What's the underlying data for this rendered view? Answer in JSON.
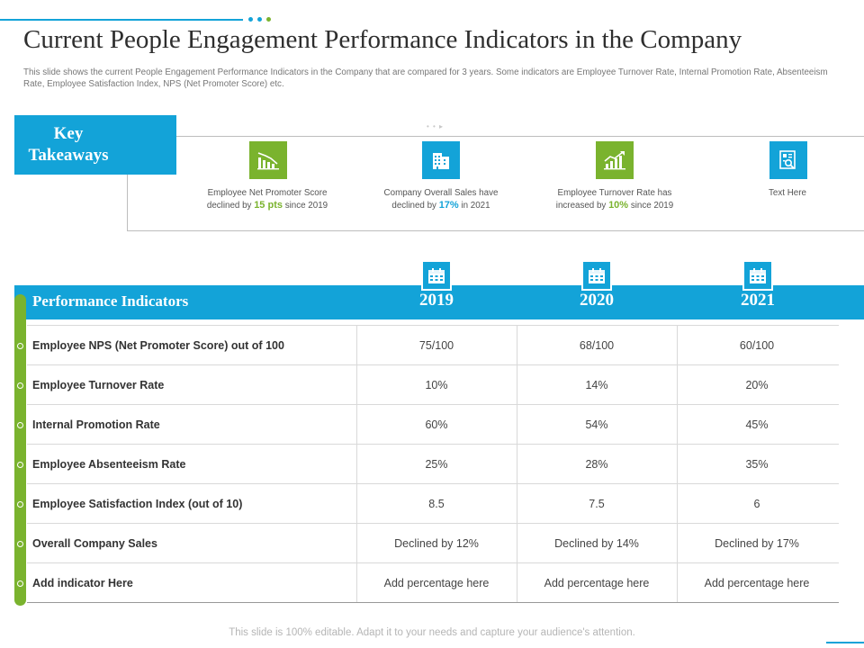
{
  "colors": {
    "accent_blue": "#13a3d8",
    "accent_green": "#7ab32e"
  },
  "title": "Current People Engagement Performance Indicators in the Company",
  "subtitle": "This slide shows the current People Engagement Performance Indicators in the Company that are compared for 3 years. Some indicators are Employee Turnover Rate, Internal Promotion Rate, Absenteeism Rate, Employee Satisfaction Index, NPS (Net Promoter Score) etc.",
  "key_takeaways": {
    "label_line1": "Key",
    "label_line2": "Takeaways",
    "pager": "• • ▸",
    "items": [
      {
        "icon": "declining-bar-chart-icon",
        "pre": "Employee Net Promoter Score declined by ",
        "highlight": "15 pts",
        "post": " since 2019"
      },
      {
        "icon": "building-icon",
        "pre": "Company Overall Sales have declined by ",
        "highlight": "17%",
        "post": " in 2021"
      },
      {
        "icon": "rising-bar-chart-icon",
        "pre": "Employee Turnover Rate has increased by ",
        "highlight": "10%",
        "post": " since 2019"
      },
      {
        "icon": "report-search-icon",
        "pre": "Text Here",
        "highlight": "",
        "post": ""
      }
    ]
  },
  "table": {
    "header_label": "Performance Indicators",
    "years": [
      "2019",
      "2020",
      "2021"
    ],
    "rows": [
      {
        "label": "Employee NPS (Net Promoter Score) out of 100",
        "values": [
          "75/100",
          "68/100",
          "60/100"
        ]
      },
      {
        "label": "Employee Turnover Rate",
        "values": [
          "10%",
          "14%",
          "20%"
        ]
      },
      {
        "label": "Internal Promotion Rate",
        "values": [
          "60%",
          "54%",
          "45%"
        ]
      },
      {
        "label": "Employee Absenteeism Rate",
        "values": [
          "25%",
          "28%",
          "35%"
        ]
      },
      {
        "label": "Employee Satisfaction Index (out of 10)",
        "values": [
          "8.5",
          "7.5",
          "6"
        ]
      },
      {
        "label": "Overall Company Sales",
        "values": [
          "Declined by 12%",
          "Declined by 14%",
          "Declined by 17%"
        ]
      },
      {
        "label": "Add indicator Here",
        "values": [
          "Add percentage here",
          "Add percentage here",
          "Add percentage here"
        ]
      }
    ]
  },
  "footer": "This slide is 100% editable. Adapt it to your needs and capture your audience's attention."
}
